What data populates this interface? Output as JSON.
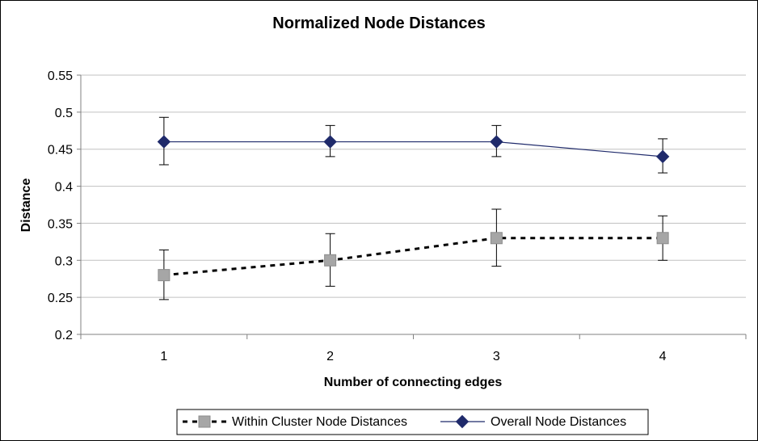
{
  "chart_data": {
    "type": "line",
    "title": "Normalized Node Distances",
    "xlabel": "Number of connecting edges",
    "ylabel": "Distance",
    "categories": [
      "1",
      "2",
      "3",
      "4"
    ],
    "ylim": [
      0.2,
      0.55
    ],
    "yticks": [
      "0.2",
      "0.25",
      "0.3",
      "0.35",
      "0.4",
      "0.45",
      "0.5",
      "0.55"
    ],
    "grid": true,
    "legend_position": "bottom",
    "series": [
      {
        "name": "Within Cluster Node Distances",
        "values": [
          0.28,
          0.3,
          0.33,
          0.33
        ],
        "err_low": [
          0.247,
          0.265,
          0.292,
          0.3
        ],
        "err_high": [
          0.314,
          0.336,
          0.369,
          0.36
        ],
        "color": "#000000",
        "marker": "square",
        "marker_color": "#a6a6a6",
        "line_style": "dotted"
      },
      {
        "name": "Overall Node Distances",
        "values": [
          0.46,
          0.46,
          0.46,
          0.44
        ],
        "err_low": [
          0.429,
          0.44,
          0.44,
          0.418
        ],
        "err_high": [
          0.493,
          0.482,
          0.482,
          0.464
        ],
        "color": "#1f2a6b",
        "marker": "diamond",
        "marker_color": "#1f2a6b",
        "line_style": "solid"
      }
    ]
  }
}
